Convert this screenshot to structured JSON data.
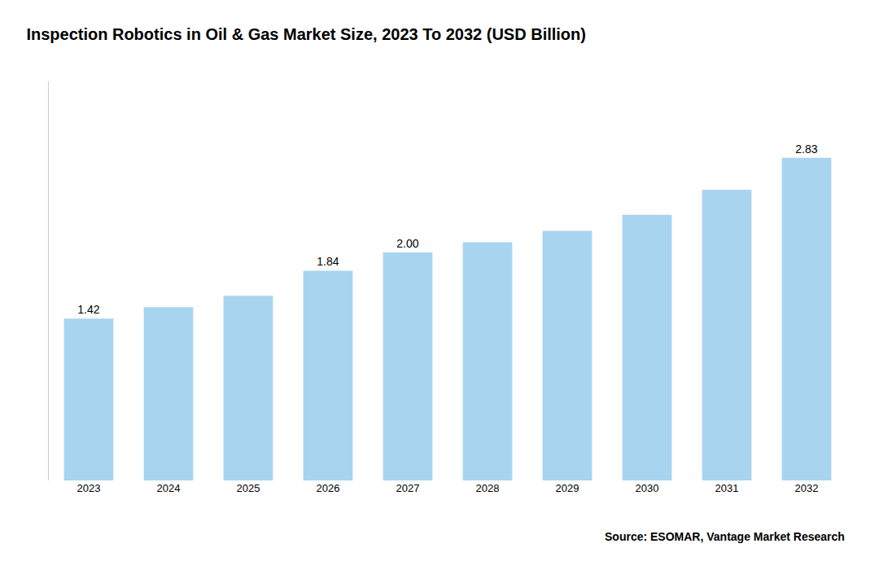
{
  "chart_data": {
    "type": "bar",
    "title": "Inspection Robotics in Oil & Gas Market Size, 2023 To 2032 (USD Billion)",
    "categories": [
      "2023",
      "2024",
      "2025",
      "2026",
      "2027",
      "2028",
      "2029",
      "2030",
      "2031",
      "2032"
    ],
    "values": [
      1.42,
      1.52,
      1.62,
      1.84,
      2.0,
      2.09,
      2.19,
      2.33,
      2.55,
      2.83
    ],
    "value_labels": [
      "1.42",
      null,
      null,
      "1.84",
      "2.00",
      null,
      null,
      null,
      null,
      "2.83"
    ],
    "color": "#a8d4f0",
    "ylim": [
      0,
      3.5
    ],
    "yticks": [],
    "grid": false,
    "tick_labels": "x",
    "annotations": [
      "Source: ESOMAR, Vantage Market Research"
    ]
  }
}
